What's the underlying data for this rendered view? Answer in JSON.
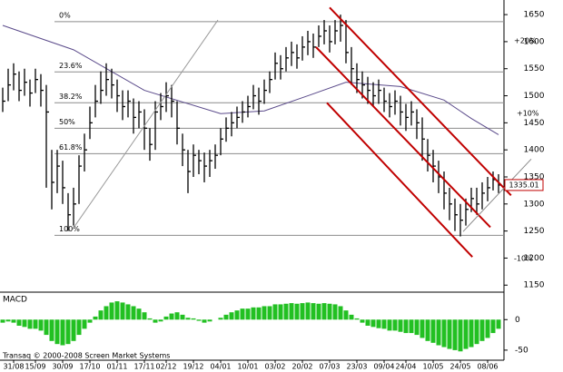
{
  "chart_data": {
    "type": "ohlc",
    "categories": [
      null,
      null,
      "31/08",
      null,
      null,
      null,
      "15/09",
      null,
      null,
      null,
      null,
      "30/09",
      null,
      null,
      null,
      null,
      "17/10",
      null,
      null,
      null,
      null,
      "01/11",
      null,
      null,
      null,
      null,
      "17/11",
      null,
      null,
      null,
      "02/12",
      null,
      null,
      null,
      null,
      "19/12",
      null,
      null,
      null,
      null,
      "04/01",
      null,
      null,
      null,
      null,
      "10/01",
      null,
      null,
      null,
      null,
      "03/02",
      null,
      null,
      null,
      null,
      "20/02",
      null,
      null,
      null,
      null,
      "07/03",
      null,
      null,
      null,
      null,
      "23/03",
      null,
      null,
      null,
      null,
      "09/04",
      null,
      null,
      null,
      "24/04",
      null,
      null,
      null,
      null,
      "10/05",
      null,
      null,
      null,
      null,
      "24/05",
      null,
      null,
      null,
      null,
      "08/06",
      null,
      null
    ],
    "high": [
      1515,
      1550,
      1560,
      1545,
      1550,
      1530,
      1550,
      1540,
      1520,
      1400,
      1400,
      1380,
      1320,
      1330,
      1390,
      1430,
      1480,
      1520,
      1545,
      1560,
      1550,
      1530,
      1510,
      1510,
      1495,
      1490,
      1475,
      1440,
      1490,
      1505,
      1525,
      1520,
      1490,
      1430,
      1400,
      1410,
      1400,
      1395,
      1400,
      1410,
      1440,
      1460,
      1470,
      1480,
      1490,
      1500,
      1520,
      1515,
      1530,
      1545,
      1580,
      1575,
      1590,
      1600,
      1595,
      1610,
      1620,
      1615,
      1630,
      1640,
      1630,
      1640,
      1650,
      1640,
      1590,
      1560,
      1545,
      1535,
      1525,
      1530,
      1515,
      1505,
      1510,
      1500,
      1485,
      1490,
      1475,
      1460,
      1420,
      1400,
      1380,
      1360,
      1330,
      1310,
      1300,
      1310,
      1330,
      1330,
      1340,
      1350,
      1360,
      1355
    ],
    "low": [
      1470,
      1490,
      1510,
      1490,
      1500,
      1480,
      1505,
      1480,
      1330,
      1290,
      1320,
      1300,
      1250,
      1260,
      1300,
      1360,
      1420,
      1460,
      1485,
      1500,
      1495,
      1470,
      1455,
      1460,
      1430,
      1440,
      1400,
      1380,
      1400,
      1455,
      1470,
      1460,
      1410,
      1370,
      1320,
      1350,
      1355,
      1340,
      1350,
      1365,
      1390,
      1415,
      1425,
      1440,
      1450,
      1460,
      1475,
      1465,
      1485,
      1505,
      1530,
      1530,
      1545,
      1555,
      1550,
      1565,
      1575,
      1570,
      1590,
      1595,
      1580,
      1595,
      1600,
      1560,
      1520,
      1505,
      1495,
      1485,
      1480,
      1485,
      1470,
      1460,
      1465,
      1445,
      1435,
      1445,
      1420,
      1380,
      1360,
      1340,
      1320,
      1290,
      1270,
      1250,
      1240,
      1260,
      1285,
      1280,
      1290,
      1305,
      1325,
      1320
    ],
    "close": [
      1490,
      1520,
      1540,
      1510,
      1525,
      1505,
      1530,
      1510,
      1470,
      1340,
      1370,
      1330,
      1280,
      1300,
      1370,
      1400,
      1450,
      1490,
      1510,
      1530,
      1520,
      1500,
      1480,
      1490,
      1460,
      1470,
      1440,
      1410,
      1470,
      1480,
      1500,
      1490,
      1440,
      1400,
      1360,
      1390,
      1380,
      1370,
      1380,
      1390,
      1420,
      1440,
      1450,
      1460,
      1470,
      1480,
      1500,
      1490,
      1510,
      1530,
      1560,
      1550,
      1570,
      1580,
      1570,
      1590,
      1600,
      1590,
      1610,
      1620,
      1600,
      1620,
      1630,
      1580,
      1550,
      1530,
      1520,
      1510,
      1500,
      1510,
      1490,
      1480,
      1490,
      1470,
      1460,
      1470,
      1450,
      1420,
      1390,
      1370,
      1350,
      1320,
      1300,
      1280,
      1270,
      1290,
      1310,
      1300,
      1320,
      1330,
      1345,
      1335.01
    ],
    "bar_color": "#000000",
    "ylim": [
      1137,
      1677
    ],
    "yticks": [
      1150,
      1200,
      1250,
      1300,
      1350,
      1400,
      1450,
      1500,
      1550,
      1600,
      1650
    ],
    "fib_levels": [
      {
        "value": 1637,
        "label": "0%"
      },
      {
        "value": 1544,
        "label": "23.6%"
      },
      {
        "value": 1487,
        "label": "38.2%"
      },
      {
        "value": 1440,
        "label": "50%"
      },
      {
        "value": 1393,
        "label": "61.8%"
      },
      {
        "value": 1242,
        "label": "100%"
      }
    ],
    "fib_color": "#8c8c8c",
    "moving_average": {
      "color": "#5a4a8a",
      "x": [
        0,
        13,
        26,
        40,
        48,
        56,
        63,
        73,
        81,
        86,
        91
      ],
      "values": [
        1630,
        1585,
        1510,
        1467,
        1472,
        1500,
        1525,
        1517,
        1492,
        1458,
        1428
      ]
    },
    "lines": [
      {
        "color": "#c00000",
        "x": [
          60,
          93.3
        ],
        "values": [
          1663,
          1316
        ]
      },
      {
        "color": "#c00000",
        "x": [
          57.5,
          89.5
        ],
        "values": [
          1590,
          1257
        ]
      },
      {
        "color": "#c00000",
        "x": [
          59.5,
          86.2
        ],
        "values": [
          1487,
          1202
        ]
      },
      {
        "color": "#9a9a9a",
        "x": [
          12.8,
          39.5
        ],
        "values": [
          1253,
          1640
        ]
      },
      {
        "color": "#8a8a8a",
        "x": [
          84.5,
          97
        ],
        "values": [
          1249,
          1383
        ]
      }
    ],
    "annotations": [
      {
        "text": "+20%",
        "color": "#2e9e2e"
      },
      {
        "text": "+10%",
        "color": "#2e9e2e"
      },
      {
        "text": "-10%",
        "color": "#cc2222"
      }
    ],
    "macd": {
      "title": "MACD",
      "color": "#22c022",
      "ylim": [
        -65,
        42
      ],
      "yticks": [
        0,
        -50
      ],
      "values": [
        -5,
        -3,
        -5,
        -10,
        -12,
        -15,
        -15,
        -18,
        -25,
        -35,
        -40,
        -42,
        -40,
        -35,
        -25,
        -15,
        -5,
        5,
        15,
        22,
        28,
        30,
        28,
        25,
        22,
        18,
        12,
        2,
        -5,
        -3,
        5,
        10,
        12,
        8,
        3,
        2,
        -2,
        -5,
        -3,
        0,
        3,
        8,
        12,
        15,
        18,
        18,
        20,
        20,
        22,
        22,
        25,
        25,
        26,
        27,
        26,
        27,
        28,
        27,
        26,
        27,
        26,
        25,
        22,
        15,
        8,
        2,
        -5,
        -10,
        -12,
        -14,
        -15,
        -18,
        -18,
        -20,
        -22,
        -22,
        -25,
        -30,
        -35,
        -38,
        -42,
        -45,
        -48,
        -50,
        -52,
        -48,
        -45,
        -40,
        -35,
        -30,
        -22,
        -15
      ]
    },
    "copyright": "Transaq © 2000-2008 Screen Market Systems"
  }
}
